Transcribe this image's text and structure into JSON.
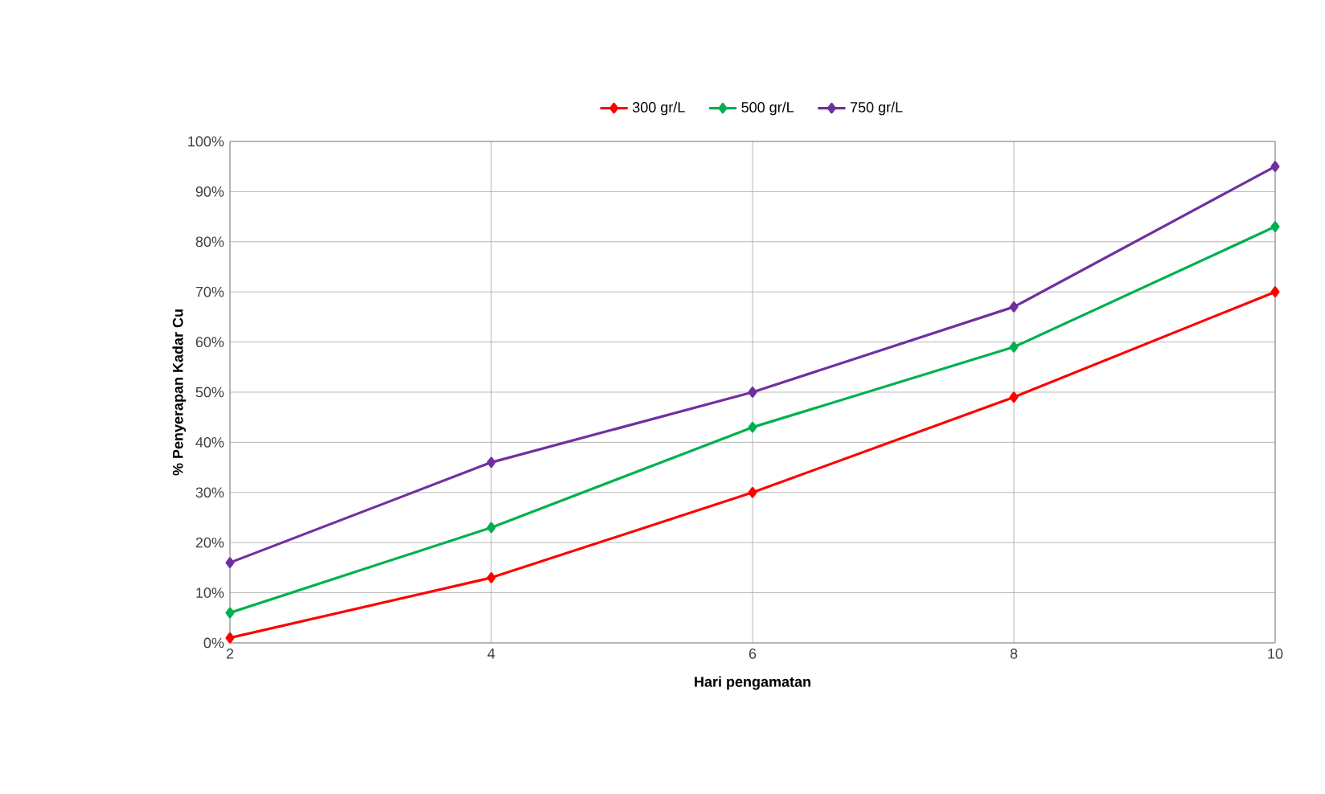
{
  "chart_data": {
    "type": "line",
    "xlabel": "Hari pengamatan",
    "ylabel": "% Penyerapan Kadar Cu",
    "x": [
      2,
      4,
      6,
      8,
      10
    ],
    "series": [
      {
        "name": "300 gr/L",
        "color": "#ff0000",
        "values": [
          1,
          13,
          30,
          49,
          70
        ]
      },
      {
        "name": "500 gr/L",
        "color": "#00b050",
        "values": [
          6,
          23,
          43,
          59,
          83
        ]
      },
      {
        "name": "750 gr/L",
        "color": "#7030a0",
        "values": [
          16,
          36,
          50,
          67,
          95
        ]
      }
    ],
    "xlim": [
      2,
      10
    ],
    "xticks": [
      2,
      4,
      6,
      8,
      10
    ],
    "ylim": [
      0,
      100
    ],
    "yticks": [
      {
        "value": 0,
        "label": "0%"
      },
      {
        "value": 10,
        "label": "10%"
      },
      {
        "value": 20,
        "label": "20%"
      },
      {
        "value": 30,
        "label": "30%"
      },
      {
        "value": 40,
        "label": "40%"
      },
      {
        "value": 50,
        "label": "50%"
      },
      {
        "value": 60,
        "label": "60%"
      },
      {
        "value": 70,
        "label": "70%"
      },
      {
        "value": 80,
        "label": "80%"
      },
      {
        "value": 90,
        "label": "90%"
      },
      {
        "value": 100,
        "label": "100%"
      }
    ],
    "grid": true,
    "legend": "top",
    "marker": "diamond",
    "line_style": "solid"
  }
}
